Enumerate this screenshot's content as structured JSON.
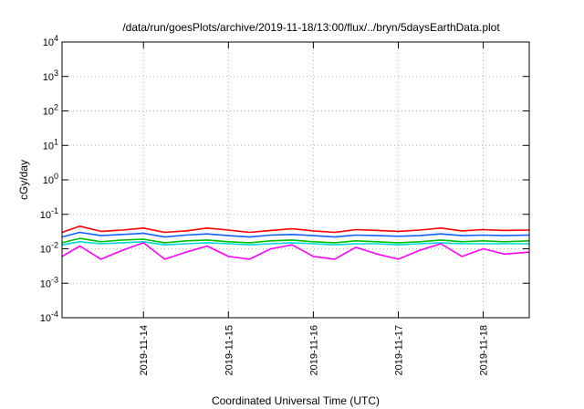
{
  "chart_data": {
    "type": "line",
    "title": "/data/run/goesPlots/archive/2019-11-18/13:00/flux/../bryn/5daysEarthData.plot",
    "xlabel": "Coordinated Universal Time (UTC)",
    "ylabel": "cGy/day",
    "yscale": "log",
    "ylim": [
      0.0001,
      10000
    ],
    "xlim": [
      "2019-11-13T01:00",
      "2019-11-18T13:00"
    ],
    "yticks": [
      {
        "base": "10",
        "exp": "-4"
      },
      {
        "base": "10",
        "exp": "-3"
      },
      {
        "base": "10",
        "exp": "-2"
      },
      {
        "base": "10",
        "exp": "-1"
      },
      {
        "base": "10",
        "exp": "0"
      },
      {
        "base": "10",
        "exp": "1"
      },
      {
        "base": "10",
        "exp": "2"
      },
      {
        "base": "10",
        "exp": "3"
      },
      {
        "base": "10",
        "exp": "4"
      }
    ],
    "xticks": [
      "2019-11-14",
      "2019-11-15",
      "2019-11-16",
      "2019-11-17",
      "2019-11-18"
    ],
    "grid": true,
    "series": [
      {
        "color": "#ff0000",
        "x": [
          "2019-11-13T01:00",
          "2019-11-13T06:00",
          "2019-11-13T12:00",
          "2019-11-13T18:00",
          "2019-11-14T00:00",
          "2019-11-14T06:00",
          "2019-11-14T12:00",
          "2019-11-14T18:00",
          "2019-11-15T00:00",
          "2019-11-15T06:00",
          "2019-11-15T12:00",
          "2019-11-15T18:00",
          "2019-11-16T00:00",
          "2019-11-16T06:00",
          "2019-11-16T12:00",
          "2019-11-16T18:00",
          "2019-11-17T00:00",
          "2019-11-17T06:00",
          "2019-11-17T12:00",
          "2019-11-17T18:00",
          "2019-11-18T00:00",
          "2019-11-18T06:00",
          "2019-11-18T13:00"
        ],
        "values": [
          0.03,
          0.045,
          0.032,
          0.035,
          0.04,
          0.03,
          0.033,
          0.04,
          0.035,
          0.03,
          0.034,
          0.038,
          0.033,
          0.03,
          0.036,
          0.034,
          0.032,
          0.035,
          0.04,
          0.033,
          0.036,
          0.034,
          0.035
        ]
      },
      {
        "color": "#00c000",
        "x": [
          "2019-11-13T01:00",
          "2019-11-13T06:00",
          "2019-11-13T12:00",
          "2019-11-13T18:00",
          "2019-11-14T00:00",
          "2019-11-14T06:00",
          "2019-11-14T12:00",
          "2019-11-14T18:00",
          "2019-11-15T00:00",
          "2019-11-15T06:00",
          "2019-11-15T12:00",
          "2019-11-15T18:00",
          "2019-11-16T00:00",
          "2019-11-16T06:00",
          "2019-11-16T12:00",
          "2019-11-16T18:00",
          "2019-11-17T00:00",
          "2019-11-17T06:00",
          "2019-11-17T12:00",
          "2019-11-17T18:00",
          "2019-11-18T00:00",
          "2019-11-18T06:00",
          "2019-11-18T13:00"
        ],
        "values": [
          0.015,
          0.02,
          0.016,
          0.018,
          0.019,
          0.015,
          0.017,
          0.018,
          0.016,
          0.015,
          0.017,
          0.018,
          0.016,
          0.015,
          0.017,
          0.016,
          0.015,
          0.016,
          0.018,
          0.016,
          0.017,
          0.016,
          0.017
        ]
      },
      {
        "color": "#00d8d8",
        "x": [
          "2019-11-13T01:00",
          "2019-11-13T06:00",
          "2019-11-13T12:00",
          "2019-11-13T18:00",
          "2019-11-14T00:00",
          "2019-11-14T06:00",
          "2019-11-14T12:00",
          "2019-11-14T18:00",
          "2019-11-15T00:00",
          "2019-11-15T06:00",
          "2019-11-15T12:00",
          "2019-11-15T18:00",
          "2019-11-16T00:00",
          "2019-11-16T06:00",
          "2019-11-16T12:00",
          "2019-11-16T18:00",
          "2019-11-17T00:00",
          "2019-11-17T06:00",
          "2019-11-17T12:00",
          "2019-11-17T18:00",
          "2019-11-18T00:00",
          "2019-11-18T06:00",
          "2019-11-18T13:00"
        ],
        "values": [
          0.013,
          0.016,
          0.014,
          0.015,
          0.016,
          0.013,
          0.014,
          0.015,
          0.014,
          0.013,
          0.014,
          0.015,
          0.014,
          0.013,
          0.014,
          0.014,
          0.013,
          0.014,
          0.015,
          0.014,
          0.014,
          0.014,
          0.014
        ]
      },
      {
        "color": "#1060ff",
        "x": [
          "2019-11-13T01:00",
          "2019-11-13T06:00",
          "2019-11-13T12:00",
          "2019-11-13T18:00",
          "2019-11-14T00:00",
          "2019-11-14T06:00",
          "2019-11-14T12:00",
          "2019-11-14T18:00",
          "2019-11-15T00:00",
          "2019-11-15T06:00",
          "2019-11-15T12:00",
          "2019-11-15T18:00",
          "2019-11-16T00:00",
          "2019-11-16T06:00",
          "2019-11-16T12:00",
          "2019-11-16T18:00",
          "2019-11-17T00:00",
          "2019-11-17T06:00",
          "2019-11-17T12:00",
          "2019-11-17T18:00",
          "2019-11-18T00:00",
          "2019-11-18T06:00",
          "2019-11-18T13:00"
        ],
        "values": [
          0.022,
          0.03,
          0.024,
          0.026,
          0.028,
          0.022,
          0.025,
          0.027,
          0.024,
          0.022,
          0.025,
          0.026,
          0.024,
          0.022,
          0.025,
          0.024,
          0.023,
          0.024,
          0.027,
          0.024,
          0.025,
          0.024,
          0.025
        ]
      },
      {
        "color": "#ff00ff",
        "x": [
          "2019-11-13T01:00",
          "2019-11-13T06:00",
          "2019-11-13T12:00",
          "2019-11-13T18:00",
          "2019-11-14T00:00",
          "2019-11-14T06:00",
          "2019-11-14T12:00",
          "2019-11-14T18:00",
          "2019-11-15T00:00",
          "2019-11-15T06:00",
          "2019-11-15T12:00",
          "2019-11-15T18:00",
          "2019-11-16T00:00",
          "2019-11-16T06:00",
          "2019-11-16T12:00",
          "2019-11-16T18:00",
          "2019-11-17T00:00",
          "2019-11-17T06:00",
          "2019-11-17T12:00",
          "2019-11-17T18:00",
          "2019-11-18T00:00",
          "2019-11-18T06:00",
          "2019-11-18T13:00"
        ],
        "values": [
          0.006,
          0.012,
          0.005,
          0.009,
          0.015,
          0.005,
          0.008,
          0.012,
          0.006,
          0.005,
          0.01,
          0.013,
          0.006,
          0.005,
          0.011,
          0.007,
          0.005,
          0.009,
          0.014,
          0.006,
          0.01,
          0.007,
          0.008
        ]
      }
    ]
  }
}
